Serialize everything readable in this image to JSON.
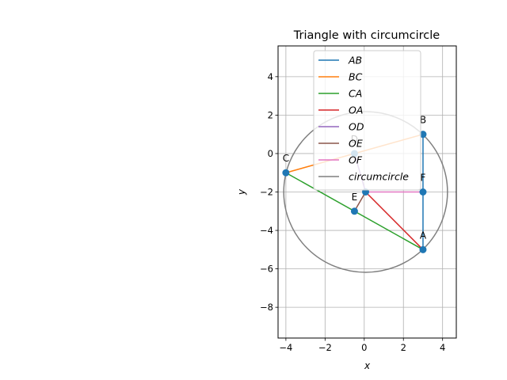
{
  "chart_data": {
    "type": "line",
    "title": "Triangle with circumcircle",
    "xlabel": "x",
    "ylabel": "y",
    "xlim": [
      -4.4,
      4.7
    ],
    "ylim": [
      -9.6,
      5.6
    ],
    "xticks": [
      -4,
      -2,
      0,
      2,
      4
    ],
    "yticks": [
      -8,
      -6,
      -4,
      -2,
      0,
      2,
      4
    ],
    "tick_labels": {
      "x": [
        "−4",
        "−2",
        "0",
        "2",
        "4"
      ],
      "y": [
        "−8",
        "−6",
        "−4",
        "−2",
        "0",
        "2",
        "4"
      ]
    },
    "grid": true,
    "legend_position": "top-center",
    "series": [
      {
        "name": "AB",
        "color": "#1f77b4",
        "x": [
          3,
          3
        ],
        "y": [
          -5,
          1
        ]
      },
      {
        "name": "BC",
        "color": "#ff7f0e",
        "x": [
          3,
          -4
        ],
        "y": [
          1,
          -1
        ]
      },
      {
        "name": "CA",
        "color": "#2ca02c",
        "x": [
          -4,
          3
        ],
        "y": [
          -1,
          -5
        ]
      },
      {
        "name": "OA",
        "color": "#d62728",
        "x": [
          0.07,
          3
        ],
        "y": [
          -2,
          -5
        ]
      },
      {
        "name": "OD",
        "color": "#9467bd",
        "x": [
          0.07,
          -0.5
        ],
        "y": [
          -2,
          0
        ]
      },
      {
        "name": "OE",
        "color": "#8c564b",
        "x": [
          0.07,
          -0.5
        ],
        "y": [
          -2,
          -3
        ]
      },
      {
        "name": "OF",
        "color": "#e377c2",
        "x": [
          0.07,
          3
        ],
        "y": [
          -2,
          -2
        ]
      },
      {
        "name": "circumcircle",
        "color": "#7f7f7f",
        "center": [
          0.07,
          -2
        ],
        "radius": 4.18
      }
    ],
    "points": [
      {
        "label": "A",
        "x": 3,
        "y": -5
      },
      {
        "label": "B",
        "x": 3,
        "y": 1
      },
      {
        "label": "C",
        "x": -4,
        "y": -1
      },
      {
        "label": "D",
        "x": -0.5,
        "y": 0
      },
      {
        "label": "E",
        "x": -0.5,
        "y": -3
      },
      {
        "label": "F",
        "x": 3,
        "y": -2
      },
      {
        "label": "",
        "x": 0.07,
        "y": -2
      }
    ],
    "marker_color": "#1f77b4"
  }
}
